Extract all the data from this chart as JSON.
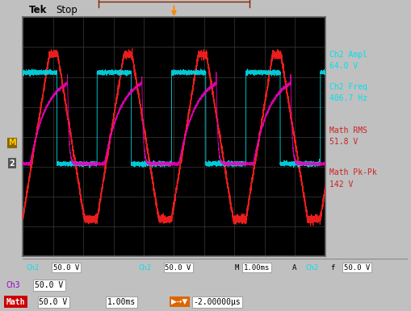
{
  "screen_bg": "#000000",
  "grid_color": "#3a3a3a",
  "border_color": "#666666",
  "red_wave_color": "#ff2020",
  "cyan_wave_color": "#00e0ee",
  "magenta_wave_color": "#ee00bb",
  "annotation_cyan": "#00e0ee",
  "annotation_red": "#cc2222",
  "outer_bg": "#c0c0c0",
  "top_bar_bg": "#d0d0d0",
  "bottom_bar_bg": "#c8c8c8",
  "freq_hz": 406.7,
  "sidebar_texts_cyan": [
    "Ch2 Ampl",
    "64.0 V",
    "Ch2 Freq",
    "406.7 Hz"
  ],
  "sidebar_texts_red": [
    "Math RMS",
    "51.8 V",
    "Math Pk-Pk",
    "142 V"
  ],
  "bottom1": "Ch2   50.0 V      M1.00ms   A  Ch2  f   50.0 V",
  "ch3_label": "Ch3",
  "ch3_val": "50.0 V",
  "math_label": "Math",
  "math_val": "50.0 V",
  "math_time": "1.00ms",
  "math_offset": "-2.00000μs"
}
